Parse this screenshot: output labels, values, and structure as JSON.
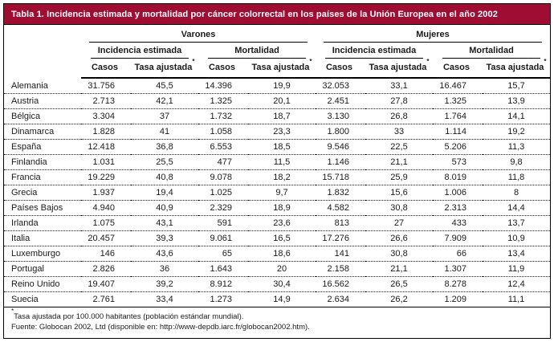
{
  "title": "Tabla 1. Incidencia estimada y mortalidad por cáncer colorrectal en los países de la Unión Europea en el año 2002",
  "colors": {
    "title_bar_bg": "#a00d33",
    "title_text": "#ffffff",
    "border": "#000000"
  },
  "header": {
    "group_varones": "Varones",
    "group_mujeres": "Mujeres",
    "sub_incidencia": "Incidencia estimada",
    "sub_mortalidad": "Mortalidad",
    "col_casos": "Casos",
    "col_tasa": "Tasa ajustada",
    "tasa_star": "*"
  },
  "table": {
    "rows": [
      {
        "country": "Alemania",
        "values": [
          "31.756",
          "45,5",
          "14.396",
          "19,9",
          "32.053",
          "33,1",
          "16.467",
          "15,7"
        ]
      },
      {
        "country": "Austria",
        "values": [
          "2.713",
          "42,1",
          "1.325",
          "20,1",
          "2.451",
          "27,8",
          "1.325",
          "13,9"
        ]
      },
      {
        "country": "Bélgica",
        "values": [
          "3.304",
          "37",
          "1.732",
          "18,7",
          "3.130",
          "26,8",
          "1.764",
          "14,1"
        ]
      },
      {
        "country": "Dinamarca",
        "values": [
          "1.828",
          "41",
          "1.058",
          "23,3",
          "1.800",
          "33",
          "1.114",
          "19,2"
        ]
      },
      {
        "country": "España",
        "values": [
          "12.418",
          "36,8",
          "6.553",
          "18,5",
          "9.546",
          "22,5",
          "5.206",
          "11,3"
        ]
      },
      {
        "country": "Finlandia",
        "values": [
          "1.031",
          "25,5",
          "477",
          "11,5",
          "1.146",
          "21,1",
          "573",
          "9,8"
        ]
      },
      {
        "country": "Francia",
        "values": [
          "19.229",
          "40,8",
          "9.078",
          "18,2",
          "15.718",
          "25,9",
          "8.019",
          "11,8"
        ]
      },
      {
        "country": "Grecia",
        "values": [
          "1.937",
          "19,4",
          "1.025",
          "9,7",
          "1.832",
          "15,6",
          "1.006",
          "8"
        ]
      },
      {
        "country": "Países Bajos",
        "values": [
          "4.940",
          "40,9",
          "2.329",
          "18,9",
          "4.582",
          "30,8",
          "2.313",
          "14,4"
        ]
      },
      {
        "country": "Irlanda",
        "values": [
          "1.075",
          "43,1",
          "591",
          "23,6",
          "813",
          "27",
          "433",
          "13,7"
        ]
      },
      {
        "country": "Italia",
        "values": [
          "20.457",
          "39,3",
          "9.061",
          "16,5",
          "17.276",
          "26,6",
          "7.909",
          "10,9"
        ]
      },
      {
        "country": "Luxemburgo",
        "values": [
          "146",
          "43,6",
          "65",
          "18,6",
          "141",
          "30,8",
          "66",
          "13,4"
        ]
      },
      {
        "country": "Portugal",
        "values": [
          "2.826",
          "36",
          "1.643",
          "20",
          "2.158",
          "21,1",
          "1.307",
          "11,9"
        ]
      },
      {
        "country": "Reino Unido",
        "values": [
          "19.407",
          "39,2",
          "8.912",
          "30,4",
          "16.562",
          "26,5",
          "8.278",
          "12,4"
        ]
      },
      {
        "country": "Suecia",
        "values": [
          "2.761",
          "33,4",
          "1.273",
          "14,9",
          "2.634",
          "26,2",
          "1.209",
          "11,1"
        ]
      }
    ]
  },
  "footnotes": [
    "Tasa ajustada por 100.000 habitantes (población estándar mundial).",
    "Fuente: Globocan 2002, Ltd (disponible en: http://www-depdb.iarc.fr/globocan2002.htm)."
  ]
}
